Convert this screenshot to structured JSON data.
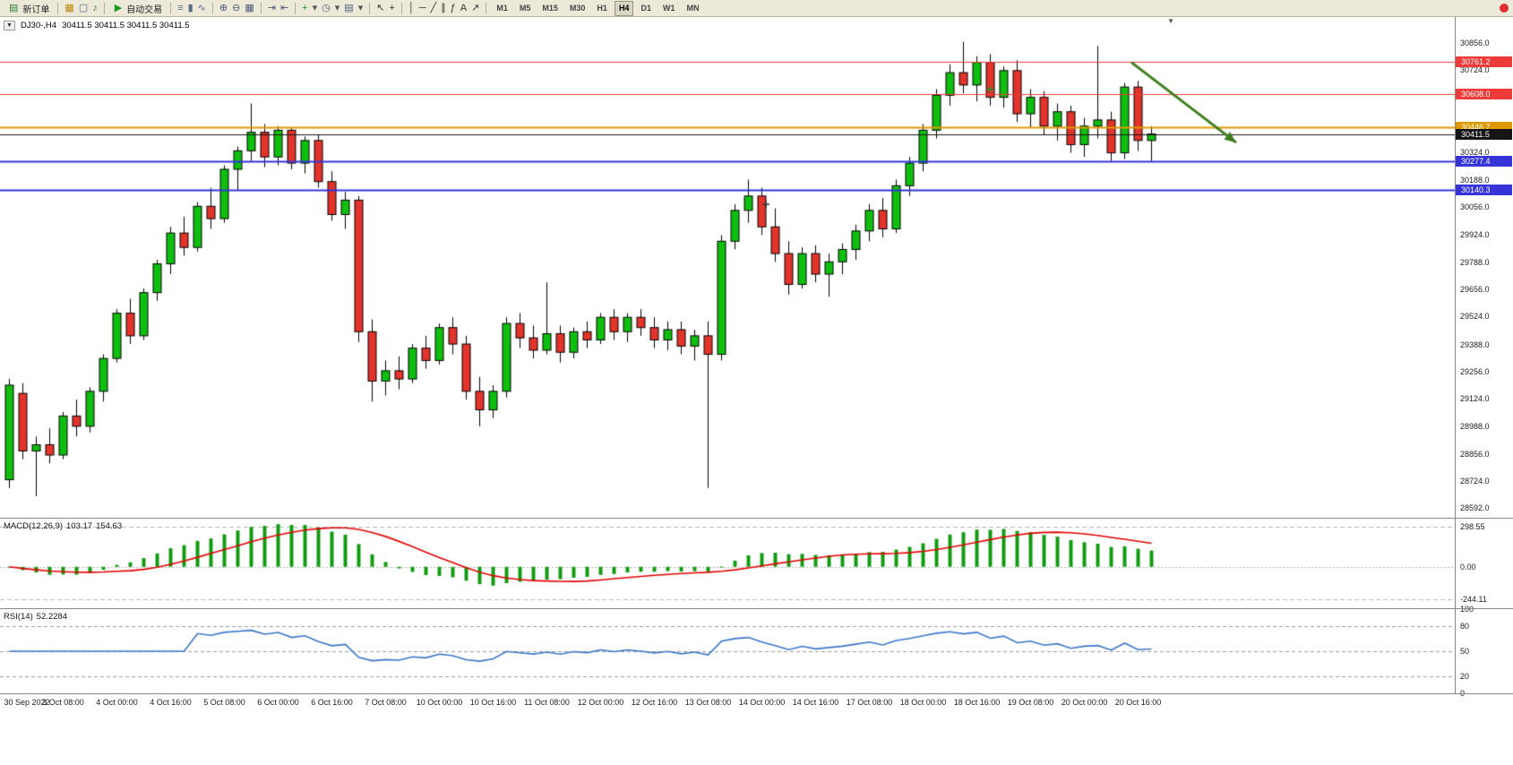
{
  "toolbar": {
    "timeframes": [
      "M1",
      "M5",
      "M15",
      "M30",
      "H1",
      "H4",
      "D1",
      "W1",
      "MN"
    ],
    "active_timeframe": "H4",
    "sections": [
      {
        "type": "button",
        "name": "new-order-button",
        "icon_glyph": "▤",
        "icon_name": "new-order-icon",
        "icon_color": "#2e7d32",
        "label": "新订单"
      },
      {
        "type": "sep"
      },
      {
        "type": "icons",
        "items": [
          {
            "name": "chart-window-icon",
            "glyph": "▦",
            "color": "#b8860b"
          },
          {
            "name": "profiles-icon",
            "glyph": "▢",
            "color": "#4a6a9c"
          },
          {
            "name": "sound-icon",
            "glyph": "♪",
            "color": "#2e7d32"
          }
        ]
      },
      {
        "type": "sep"
      },
      {
        "type": "button",
        "name": "auto-trading-button",
        "icon_glyph": "▶",
        "icon_name": "play-icon",
        "icon_color": "#1a9c1a",
        "label": "自动交易"
      },
      {
        "type": "sep"
      },
      {
        "type": "icons",
        "items": [
          {
            "name": "bar-chart-icon",
            "glyph": "≡",
            "color": "#566a8c"
          },
          {
            "name": "candlestick-chart-icon",
            "glyph": "▮",
            "color": "#566a8c"
          },
          {
            "name": "line-chart-icon",
            "glyph": "∿",
            "color": "#566a8c"
          }
        ]
      },
      {
        "type": "sep"
      },
      {
        "type": "icons",
        "items": [
          {
            "name": "zoom-in-icon",
            "glyph": "⊕",
            "color": "#4a5a7a"
          },
          {
            "name": "zoom-out-icon",
            "glyph": "⊖",
            "color": "#4a5a7a"
          },
          {
            "name": "tile-windows-icon",
            "glyph": "▦",
            "color": "#4a5a7a"
          }
        ]
      },
      {
        "type": "sep"
      },
      {
        "type": "icons",
        "items": [
          {
            "name": "auto-scroll-icon",
            "glyph": "⇥",
            "color": "#4a5a7a"
          },
          {
            "name": "chart-shift-icon",
            "glyph": "⇤",
            "color": "#4a5a7a"
          }
        ]
      },
      {
        "type": "sep"
      },
      {
        "type": "icons",
        "items": [
          {
            "name": "indicators-icon",
            "glyph": "+",
            "color": "#1a9c1a"
          },
          {
            "name": "indicators-dropdown-icon",
            "glyph": "▾",
            "color": "#555555"
          },
          {
            "name": "period-icon",
            "glyph": "◷",
            "color": "#4a5a7a"
          },
          {
            "name": "period-dropdown-icon",
            "glyph": "▾",
            "color": "#555555"
          },
          {
            "name": "template-icon",
            "glyph": "▤",
            "color": "#4a5a7a"
          },
          {
            "name": "template-dropdown-icon",
            "glyph": "▾",
            "color": "#555555"
          }
        ]
      },
      {
        "type": "sep"
      },
      {
        "type": "icons",
        "items": [
          {
            "name": "cursor-icon",
            "glyph": "↖",
            "color": "#333333"
          },
          {
            "name": "crosshair-icon",
            "glyph": "+",
            "color": "#333333"
          }
        ]
      },
      {
        "type": "sep"
      },
      {
        "type": "icons",
        "items": [
          {
            "name": "vertical-line-icon",
            "glyph": "│",
            "color": "#333333"
          },
          {
            "name": "horizontal-line-icon",
            "glyph": "─",
            "color": "#333333"
          },
          {
            "name": "trendline-icon",
            "glyph": "╱",
            "color": "#333333"
          },
          {
            "name": "equidistant-channel-icon",
            "glyph": "∥",
            "color": "#333333"
          },
          {
            "name": "fibonacci-icon",
            "glyph": "ƒ",
            "color": "#333333"
          },
          {
            "name": "text-icon",
            "glyph": "A",
            "color": "#333333"
          },
          {
            "name": "arrow-tool-icon",
            "glyph": "↗",
            "color": "#333333"
          }
        ]
      },
      {
        "type": "sep"
      },
      {
        "type": "timeframes"
      }
    ]
  },
  "chart_header": {
    "symbol_period": "DJ30-,H4",
    "ohlc_text": "30411.5 30411.5 30411.5 30411.5"
  },
  "chart_data": {
    "type": "candlestick",
    "symbol": "DJ30-",
    "period": "H4",
    "up_color": "#0fbf0f",
    "down_color": "#e3342c",
    "price_range": {
      "min": 28545,
      "max": 30985
    },
    "bars_per_label": 4,
    "candles": [
      [
        28730,
        29220,
        28690,
        29190
      ],
      [
        29150,
        29200,
        28830,
        28870
      ],
      [
        28870,
        28940,
        28650,
        28900
      ],
      [
        28900,
        28980,
        28810,
        28850
      ],
      [
        28850,
        29060,
        28830,
        29040
      ],
      [
        29040,
        29120,
        28940,
        28990
      ],
      [
        28990,
        29180,
        28960,
        29160
      ],
      [
        29160,
        29340,
        29110,
        29320
      ],
      [
        29320,
        29560,
        29300,
        29540
      ],
      [
        29540,
        29610,
        29390,
        29430
      ],
      [
        29430,
        29660,
        29410,
        29640
      ],
      [
        29640,
        29800,
        29600,
        29780
      ],
      [
        29780,
        29960,
        29730,
        29930
      ],
      [
        29930,
        30010,
        29820,
        29860
      ],
      [
        29860,
        30080,
        29840,
        30060
      ],
      [
        30060,
        30150,
        29950,
        30000
      ],
      [
        30000,
        30260,
        29980,
        30240
      ],
      [
        30240,
        30350,
        30140,
        30330
      ],
      [
        30330,
        30560,
        30280,
        30420
      ],
      [
        30420,
        30460,
        30250,
        30300
      ],
      [
        30300,
        30450,
        30260,
        30430
      ],
      [
        30430,
        30445,
        30240,
        30270
      ],
      [
        30270,
        30400,
        30220,
        30380
      ],
      [
        30380,
        30410,
        30150,
        30180
      ],
      [
        30180,
        30230,
        29990,
        30020
      ],
      [
        30020,
        30130,
        29950,
        30090
      ],
      [
        30090,
        30110,
        29400,
        29450
      ],
      [
        29450,
        29510,
        29110,
        29210
      ],
      [
        29210,
        29310,
        29140,
        29260
      ],
      [
        29260,
        29330,
        29170,
        29220
      ],
      [
        29220,
        29390,
        29200,
        29370
      ],
      [
        29370,
        29430,
        29270,
        29310
      ],
      [
        29310,
        29490,
        29290,
        29470
      ],
      [
        29470,
        29520,
        29340,
        29390
      ],
      [
        29390,
        29430,
        29120,
        29160
      ],
      [
        29160,
        29230,
        28990,
        29070
      ],
      [
        29070,
        29190,
        29030,
        29160
      ],
      [
        29160,
        29520,
        29130,
        29490
      ],
      [
        29490,
        29540,
        29370,
        29420
      ],
      [
        29420,
        29480,
        29320,
        29360
      ],
      [
        29360,
        29690,
        29340,
        29440
      ],
      [
        29440,
        29480,
        29300,
        29350
      ],
      [
        29350,
        29470,
        29320,
        29450
      ],
      [
        29450,
        29500,
        29370,
        29410
      ],
      [
        29410,
        29540,
        29390,
        29520
      ],
      [
        29520,
        29560,
        29410,
        29450
      ],
      [
        29450,
        29540,
        29400,
        29520
      ],
      [
        29520,
        29560,
        29430,
        29470
      ],
      [
        29470,
        29520,
        29370,
        29410
      ],
      [
        29410,
        29500,
        29360,
        29460
      ],
      [
        29460,
        29500,
        29340,
        29380
      ],
      [
        29380,
        29460,
        29310,
        29430
      ],
      [
        29430,
        29500,
        28690,
        29340
      ],
      [
        29340,
        29920,
        29310,
        29890
      ],
      [
        29890,
        30070,
        29850,
        30040
      ],
      [
        30040,
        30190,
        29980,
        30110
      ],
      [
        30110,
        30150,
        29920,
        29960
      ],
      [
        29960,
        30050,
        29790,
        29830
      ],
      [
        29830,
        29890,
        29630,
        29680
      ],
      [
        29680,
        29860,
        29660,
        29830
      ],
      [
        29830,
        29870,
        29690,
        29730
      ],
      [
        29730,
        29830,
        29620,
        29790
      ],
      [
        29790,
        29880,
        29730,
        29850
      ],
      [
        29850,
        29970,
        29800,
        29940
      ],
      [
        29940,
        30070,
        29890,
        30040
      ],
      [
        30040,
        30100,
        29910,
        29950
      ],
      [
        29950,
        30190,
        29930,
        30160
      ],
      [
        30160,
        30300,
        30110,
        30270
      ],
      [
        30270,
        30460,
        30230,
        30430
      ],
      [
        30430,
        30630,
        30390,
        30600
      ],
      [
        30600,
        30750,
        30550,
        30710
      ],
      [
        30710,
        30860,
        30610,
        30650
      ],
      [
        30650,
        30790,
        30570,
        30760
      ],
      [
        30760,
        30800,
        30550,
        30590
      ],
      [
        30590,
        30740,
        30540,
        30720
      ],
      [
        30720,
        30770,
        30470,
        30510
      ],
      [
        30510,
        30630,
        30440,
        30590
      ],
      [
        30590,
        30620,
        30410,
        30450
      ],
      [
        30450,
        30560,
        30380,
        30520
      ],
      [
        30520,
        30550,
        30320,
        30360
      ],
      [
        30360,
        30490,
        30300,
        30450
      ],
      [
        30450,
        30840,
        30390,
        30480
      ],
      [
        30480,
        30520,
        30280,
        30320
      ],
      [
        30320,
        30660,
        30290,
        30640
      ],
      [
        30640,
        30670,
        30330,
        30380
      ],
      [
        30380,
        30450,
        30280,
        30411.5
      ]
    ],
    "time_labels": [
      "30 Sep 2022",
      "3 Oct 08:00",
      "4 Oct 00:00",
      "4 Oct 16:00",
      "5 Oct 08:00",
      "6 Oct 00:00",
      "6 Oct 16:00",
      "7 Oct 08:00",
      "10 Oct 00:00",
      "10 Oct 16:00",
      "11 Oct 08:00",
      "12 Oct 00:00",
      "12 Oct 16:00",
      "13 Oct 08:00",
      "14 Oct 00:00",
      "14 Oct 16:00",
      "17 Oct 08:00",
      "18 Oct 00:00",
      "18 Oct 16:00",
      "19 Oct 08:00",
      "20 Oct 00:00",
      "20 Oct 16:00"
    ],
    "price_grid_labels": [
      "30856.0",
      "30724.0",
      "30324.0",
      "30188.0",
      "30056.0",
      "29924.0",
      "29788.0",
      "29656.0",
      "29524.0",
      "29388.0",
      "29256.0",
      "29124.0",
      "28988.0",
      "28856.0",
      "28724.0",
      "28592.0"
    ],
    "hlines": [
      {
        "price": 30761.2,
        "label": "30761.2",
        "color": "#ef3a3a",
        "width": 1
      },
      {
        "price": 30608.0,
        "label": "30608.0",
        "color": "#ef3a3a",
        "width": 1
      },
      {
        "price": 30446.7,
        "label": "30446.7",
        "color": "#e09a00",
        "width": 2
      },
      {
        "price": 30277.4,
        "label": "30277.4",
        "color": "#3434d8",
        "width": 2
      },
      {
        "price": 30140.3,
        "label": "30140.3",
        "color": "#3434d8",
        "width": 2
      }
    ],
    "current_price": {
      "value": 30411.5,
      "label": "30411.5",
      "color": "#151515"
    },
    "arrow": {
      "from_bar": 83.5,
      "from_price": 30760,
      "to_bar": 91.3,
      "to_price": 30370,
      "color": "#3f7d1e"
    },
    "plus_markers": [
      {
        "bar": 73,
        "price": 30630,
        "color": "#2e8b2e"
      },
      {
        "bar": 56.3,
        "price": 30070,
        "color": "#333333"
      }
    ],
    "indicators": {
      "macd": {
        "label": "MACD(12,26,9)",
        "value_main": "103.17",
        "value_signal": "154.63",
        "params": [
          12,
          26,
          9
        ],
        "range": {
          "min": -310,
          "max": 360
        },
        "axis_labels": [
          {
            "v": 298.55,
            "text": "298.55"
          },
          {
            "v": 0,
            "text": "0.00"
          },
          {
            "v": -244.11,
            "text": "-244.11"
          }
        ],
        "hist_color": "#129b12",
        "signal_color": "#e30000"
      },
      "rsi": {
        "label": "RSI(14)",
        "value": "52.2284",
        "period": 14,
        "levels": [
          80,
          50,
          20
        ],
        "axis_labels": [
          {
            "v": 100,
            "text": "100"
          },
          {
            "v": 80,
            "text": "80"
          },
          {
            "v": 50,
            "text": "50"
          },
          {
            "v": 20,
            "text": "20"
          },
          {
            "v": 0,
            "text": "0"
          }
        ],
        "color": "#3a76c9"
      }
    }
  }
}
